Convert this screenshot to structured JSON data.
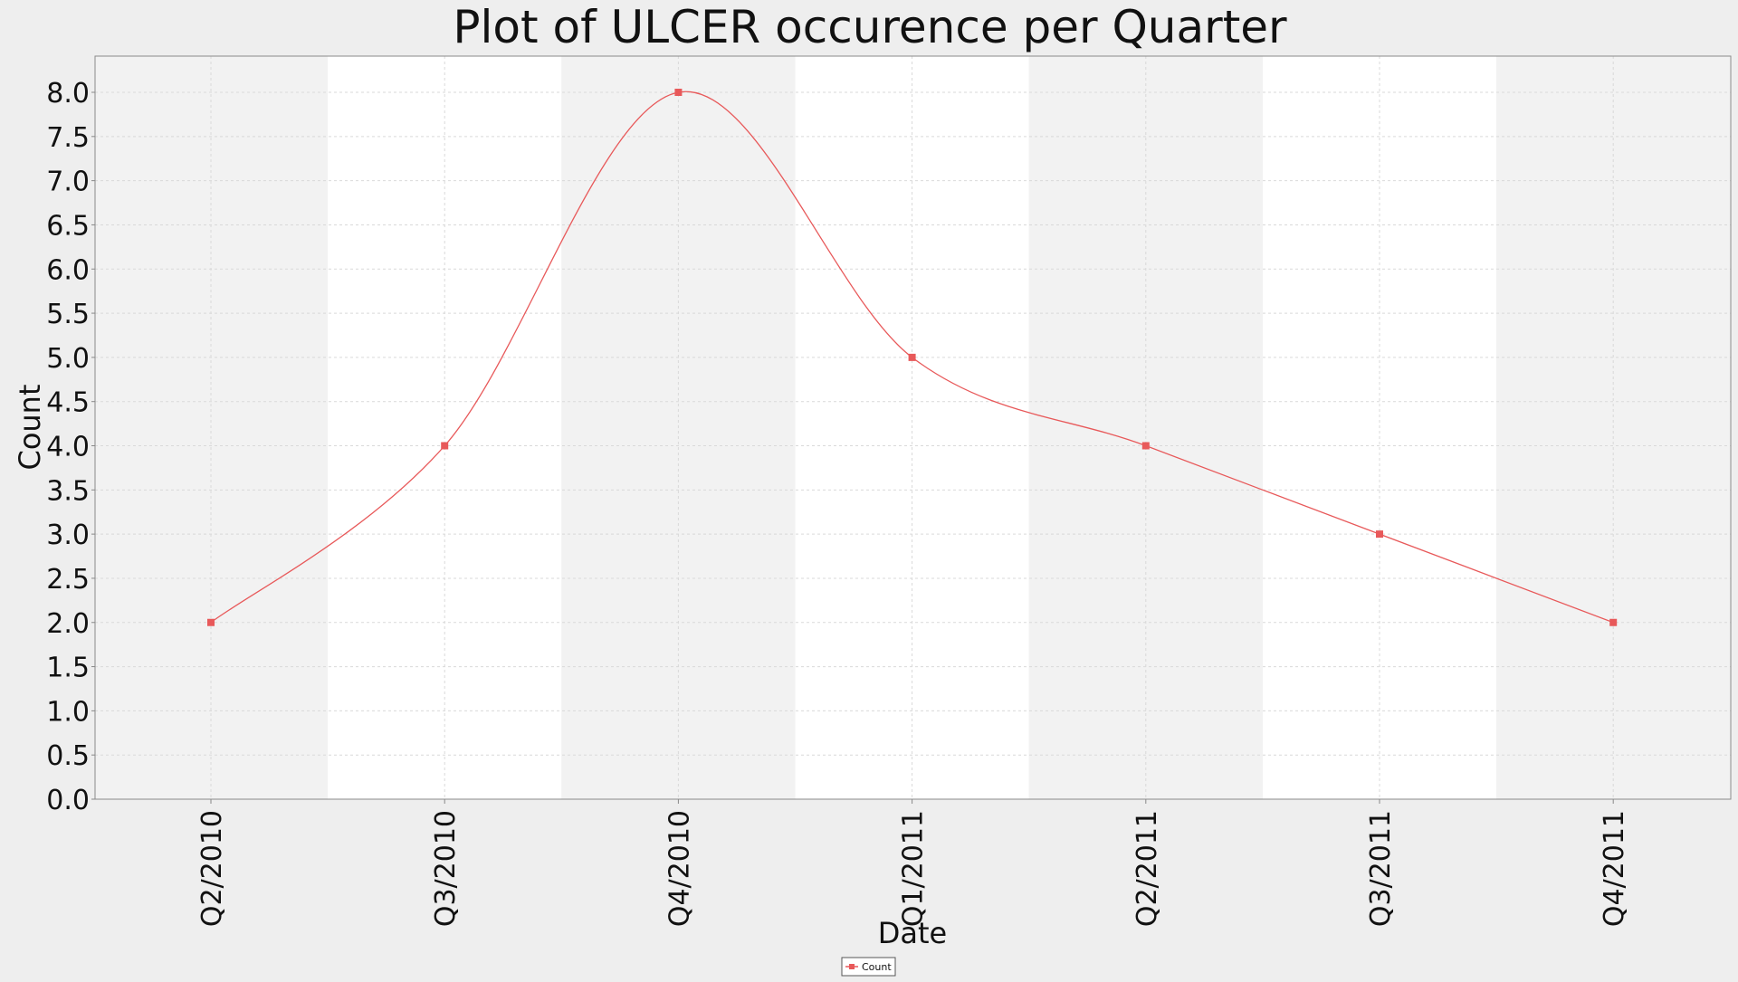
{
  "chart_data": {
    "type": "line",
    "title": "Plot of ULCER occurence per Quarter",
    "xlabel": "Date",
    "ylabel": "Count",
    "categories": [
      "Q2/2010",
      "Q3/2010",
      "Q4/2010",
      "Q1/2011",
      "Q2/2011",
      "Q3/2011",
      "Q4/2011"
    ],
    "series": [
      {
        "name": "Count",
        "values": [
          2,
          4,
          8,
          5,
          4,
          3,
          2
        ],
        "color": "#e8595a"
      }
    ],
    "ylim": [
      0,
      8
    ],
    "yticks": [
      "0.0",
      "0.5",
      "1.0",
      "1.5",
      "2.0",
      "2.5",
      "3.0",
      "3.5",
      "4.0",
      "4.5",
      "5.0",
      "5.5",
      "6.0",
      "6.5",
      "7.0",
      "7.5",
      "8.0"
    ],
    "grid": true,
    "smooth": true,
    "legend": "bottom-center"
  },
  "colors": {
    "page_background": "#eeeeee",
    "band_light": "#ffffff",
    "band_dark": "#f2f2f2",
    "grid": "#d9d9d9",
    "axis": "#888888",
    "text": "#111111"
  }
}
